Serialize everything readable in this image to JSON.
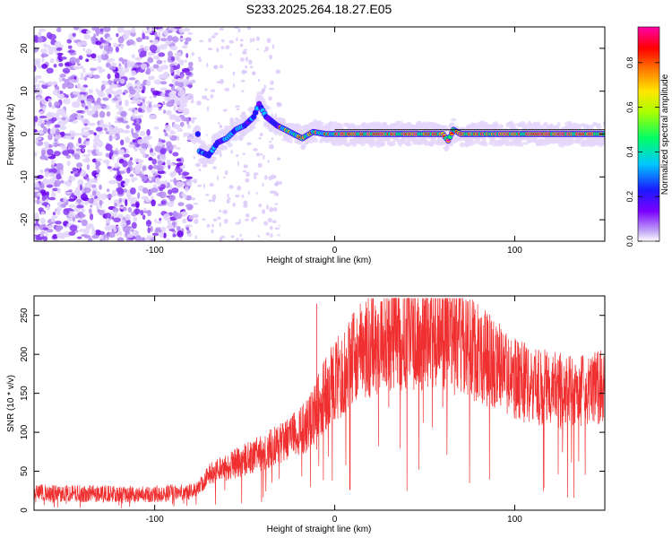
{
  "figure": {
    "title": "S233.2025.264.18.27.E05"
  },
  "chart_data": [
    {
      "type": "heatmap",
      "title": "S233.2025.264.18.27.E05",
      "xlabel": "Height of straight line (km)",
      "ylabel": "Frequency (Hz)",
      "xlim": [
        -167,
        150
      ],
      "ylim": [
        -25,
        25
      ],
      "xticks": [
        -100,
        0,
        100
      ],
      "xtick_labels": [
        "-100",
        "0",
        "100"
      ],
      "yticks": [
        20,
        10,
        0,
        -10,
        -20
      ],
      "ytick_labels": [
        "20",
        "10",
        "0",
        "-10",
        "-20"
      ],
      "colorbar": {
        "label": "Normalized spectral amplitude",
        "range": [
          0,
          0.96
        ],
        "ticks": [
          0.0,
          0.2,
          0.4,
          0.6,
          0.8
        ],
        "tick_labels": [
          "0.0",
          "0.2",
          "0.4",
          "0.6",
          "0.8"
        ],
        "colormap": [
          "#c9b3f5",
          "#7a00ff",
          "#1a1aff",
          "#00c8ff",
          "#00ff66",
          "#a8ff00",
          "#ffe600",
          "#ff7a00",
          "#ff0000",
          "#ff00aa"
        ]
      },
      "noise_region_x": [
        -167,
        -80
      ],
      "signal_trace": [
        {
          "x": -75,
          "f": -4
        },
        {
          "x": -70,
          "f": -5
        },
        {
          "x": -65,
          "f": -2
        },
        {
          "x": -60,
          "f": -1
        },
        {
          "x": -55,
          "f": 1
        },
        {
          "x": -50,
          "f": 2
        },
        {
          "x": -45,
          "f": 4
        },
        {
          "x": -42,
          "f": 7
        },
        {
          "x": -38,
          "f": 4
        },
        {
          "x": -32,
          "f": 2
        },
        {
          "x": -25,
          "f": 0.5
        },
        {
          "x": -18,
          "f": -1
        },
        {
          "x": -12,
          "f": 0.5
        },
        {
          "x": -5,
          "f": 0
        },
        {
          "x": 0,
          "f": 0
        },
        {
          "x": 60,
          "f": 0
        },
        {
          "x": 63,
          "f": -1.5
        },
        {
          "x": 66,
          "f": 1
        },
        {
          "x": 70,
          "f": 0
        },
        {
          "x": 150,
          "f": 0
        }
      ],
      "reference_line": {
        "f": 1,
        "x_range": [
          0,
          150
        ]
      }
    },
    {
      "type": "line",
      "title": "",
      "xlabel": "Height of straight line (km)",
      "ylabel": "SNR (10 * v/v)",
      "xlim": [
        -167,
        150
      ],
      "ylim": [
        0,
        275
      ],
      "xticks": [
        -100,
        0,
        100
      ],
      "xtick_labels": [
        "-100",
        "0",
        "100"
      ],
      "yticks": [
        0,
        50,
        100,
        150,
        200,
        250
      ],
      "ytick_labels": [
        "0",
        "50",
        "100",
        "150",
        "200",
        "250"
      ],
      "color": "#f03030",
      "envelope": [
        {
          "x": -167,
          "y": 22
        },
        {
          "x": -140,
          "y": 21
        },
        {
          "x": -100,
          "y": 21
        },
        {
          "x": -78,
          "y": 24
        },
        {
          "x": -70,
          "y": 45
        },
        {
          "x": -60,
          "y": 55
        },
        {
          "x": -50,
          "y": 65
        },
        {
          "x": -40,
          "y": 75
        },
        {
          "x": -30,
          "y": 85
        },
        {
          "x": -20,
          "y": 100
        },
        {
          "x": -15,
          "y": 110
        },
        {
          "x": -10,
          "y": 130
        },
        {
          "x": -5,
          "y": 150
        },
        {
          "x": 0,
          "y": 165
        },
        {
          "x": 5,
          "y": 180
        },
        {
          "x": 10,
          "y": 195
        },
        {
          "x": 20,
          "y": 210
        },
        {
          "x": 30,
          "y": 220
        },
        {
          "x": 40,
          "y": 225
        },
        {
          "x": 50,
          "y": 225
        },
        {
          "x": 60,
          "y": 220
        },
        {
          "x": 70,
          "y": 215
        },
        {
          "x": 80,
          "y": 200
        },
        {
          "x": 90,
          "y": 185
        },
        {
          "x": 100,
          "y": 170
        },
        {
          "x": 110,
          "y": 160
        },
        {
          "x": 120,
          "y": 155
        },
        {
          "x": 130,
          "y": 152
        },
        {
          "x": 140,
          "y": 155
        },
        {
          "x": 150,
          "y": 158
        }
      ],
      "spikes": [
        {
          "x": -10,
          "y": 265
        },
        {
          "x": 30,
          "y": 268
        },
        {
          "x": 60,
          "y": 270
        }
      ]
    }
  ]
}
